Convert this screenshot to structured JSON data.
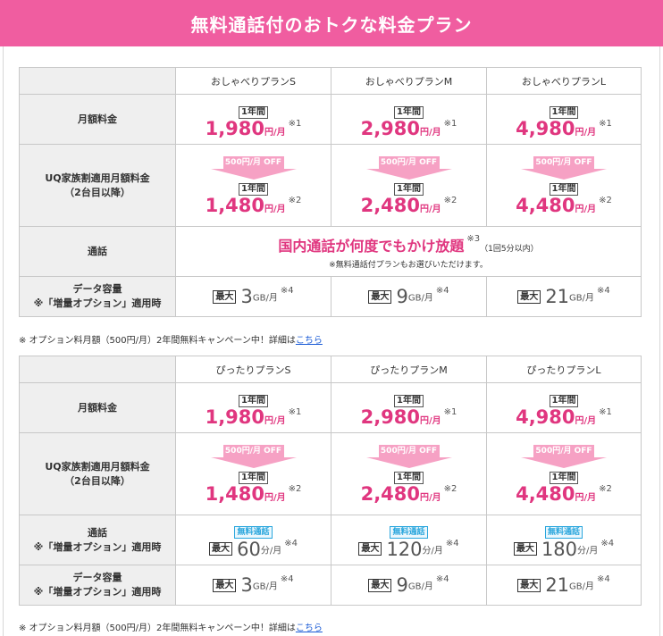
{
  "header": {
    "title": "無料通話付のおトクな料金プラン"
  },
  "tables": [
    {
      "plans": [
        "おしゃべりプランS",
        "おしゃべりプランM",
        "おしゃべりプランL"
      ],
      "rows": {
        "monthly_label": "月額料金",
        "family_label_1": "UQ家族割適用月額料金",
        "family_label_2": "（2台目以降）",
        "call_label": "通話",
        "call_label_2": "",
        "data_label_1": "データ容量",
        "data_label_2": "※「増量オプション」適用時"
      },
      "badge": "1年間",
      "price_unit": "円/月",
      "discount": "500円/月 OFF",
      "monthly": [
        {
          "price": "1,980",
          "note": "※1"
        },
        {
          "price": "2,980",
          "note": "※1"
        },
        {
          "price": "4,980",
          "note": "※1"
        }
      ],
      "family": [
        {
          "price": "1,480",
          "note": "※2"
        },
        {
          "price": "2,480",
          "note": "※2"
        },
        {
          "price": "4,480",
          "note": "※2"
        }
      ],
      "call_merged": {
        "main": "国内通話が何度でもかけ放題",
        "note": "※3",
        "detail": "（1回5分以内）",
        "foot": "※無料通話付プランもお選びいただけます。"
      },
      "data": [
        {
          "max": "最大",
          "value": "3",
          "unit": "GB/月",
          "note": "※4"
        },
        {
          "max": "最大",
          "value": "9",
          "unit": "GB/月",
          "note": "※4"
        },
        {
          "max": "最大",
          "value": "21",
          "unit": "GB/月",
          "note": "※4"
        }
      ],
      "footnote": {
        "text": "※ オプション料月額（500円/月）2年間無料キャンペーン中！詳細は",
        "link": "こちら"
      }
    },
    {
      "plans": [
        "ぴったりプランS",
        "ぴったりプランM",
        "ぴったりプランL"
      ],
      "rows": {
        "monthly_label": "月額料金",
        "family_label_1": "UQ家族割適用月額料金",
        "family_label_2": "（2台目以降）",
        "call_label": "通話",
        "call_label_2": "※「増量オプション」適用時",
        "data_label_1": "データ容量",
        "data_label_2": "※「増量オプション」適用時"
      },
      "badge": "1年間",
      "price_unit": "円/月",
      "discount": "500円/月 OFF",
      "monthly": [
        {
          "price": "1,980",
          "note": "※1"
        },
        {
          "price": "2,980",
          "note": "※1"
        },
        {
          "price": "4,980",
          "note": "※1"
        }
      ],
      "family": [
        {
          "price": "1,480",
          "note": "※2"
        },
        {
          "price": "2,480",
          "note": "※2"
        },
        {
          "price": "4,480",
          "note": "※2"
        }
      ],
      "calls": [
        {
          "free": "無料通話",
          "max": "最大",
          "value": "60",
          "unit": "分/月",
          "note": "※4"
        },
        {
          "free": "無料通話",
          "max": "最大",
          "value": "120",
          "unit": "分/月",
          "note": "※4"
        },
        {
          "free": "無料通話",
          "max": "最大",
          "value": "180",
          "unit": "分/月",
          "note": "※4"
        }
      ],
      "data": [
        {
          "max": "最大",
          "value": "3",
          "unit": "GB/月",
          "note": "※4"
        },
        {
          "max": "最大",
          "value": "9",
          "unit": "GB/月",
          "note": "※4"
        },
        {
          "max": "最大",
          "value": "21",
          "unit": "GB/月",
          "note": "※4"
        }
      ],
      "footnote": {
        "text": "※ オプション料月額（500円/月）2年間無料キャンペーン中！詳細は",
        "link": "こちら"
      }
    }
  ],
  "colors": {
    "accent": "#f05da0",
    "price": "#e0367f",
    "arrow": "#f6a1c4",
    "free": "#2aa6dd"
  }
}
